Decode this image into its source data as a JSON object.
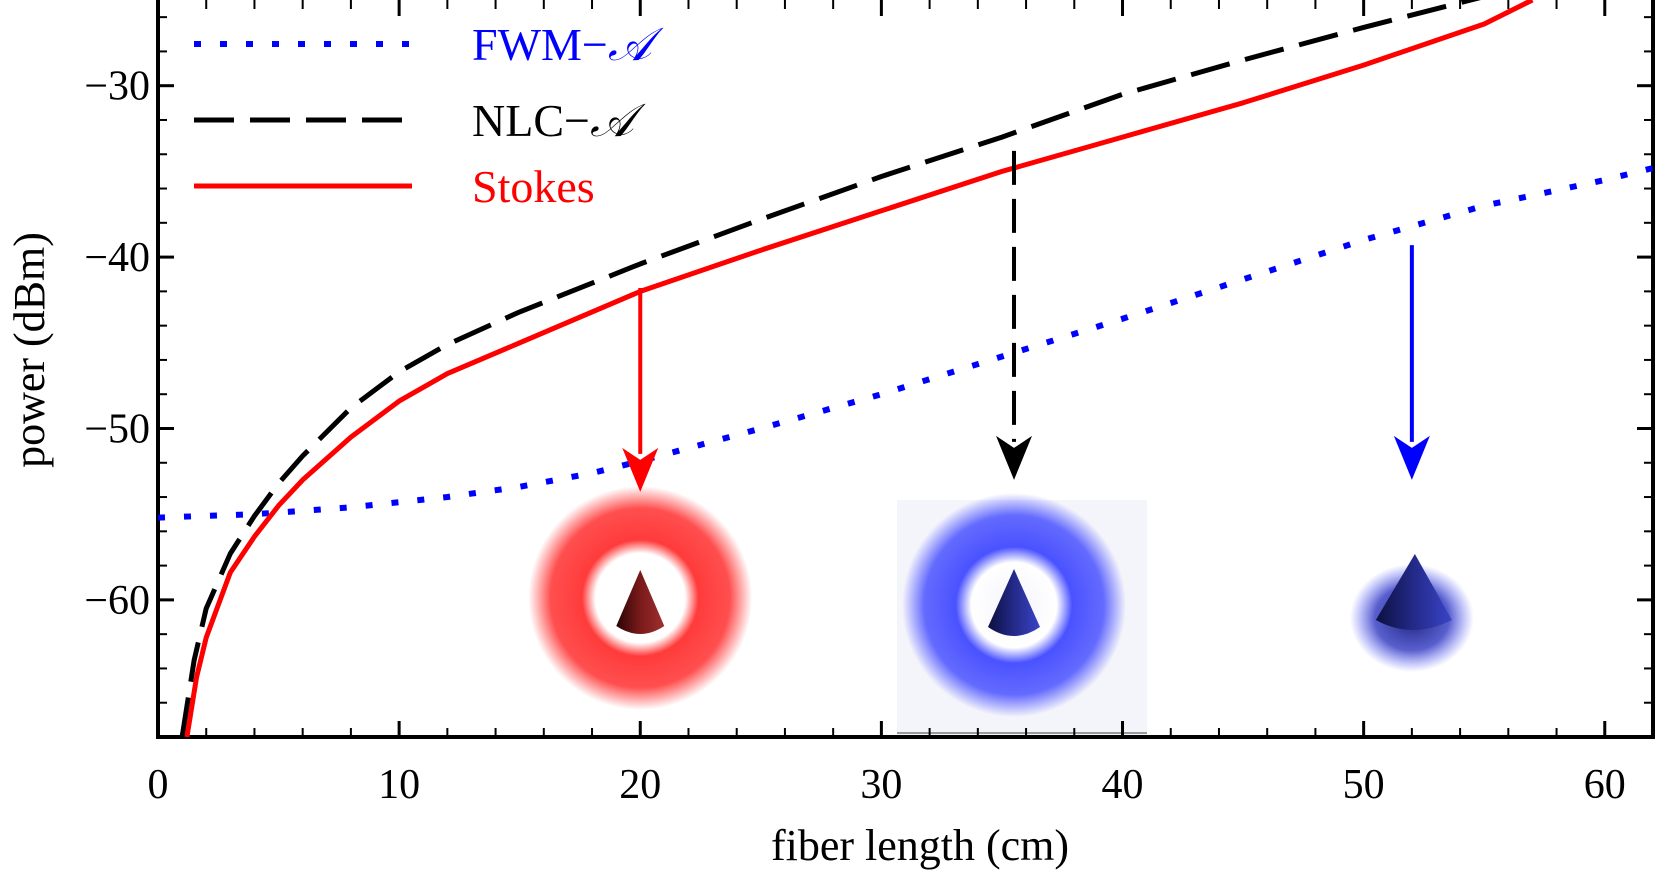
{
  "chart_data": {
    "type": "line",
    "xlabel": "fiber length (cm)",
    "ylabel": "power (dBm)",
    "xlim": [
      0,
      62
    ],
    "ylim": [
      -68,
      -25
    ],
    "xticks": [
      0,
      10,
      20,
      30,
      40,
      50,
      60
    ],
    "xtick_labels": [
      "0",
      "10",
      "20",
      "30",
      "40",
      "50",
      "60"
    ],
    "yticks": [
      -60,
      -50,
      -40,
      -30
    ],
    "ytick_labels": [
      "−60",
      "−50",
      "−40",
      "−30"
    ],
    "legend_position": "top-left",
    "series": [
      {
        "name": "FWM−",
        "name_suffix": "𝒜",
        "color": "#0000ff",
        "style": "dotted",
        "x": [
          0,
          2,
          4,
          6,
          8,
          10,
          12,
          15,
          18,
          20,
          25,
          30,
          35,
          40,
          45,
          50,
          55,
          60,
          62
        ],
        "y": [
          -55.2,
          -55.1,
          -55.0,
          -54.8,
          -54.6,
          -54.3,
          -54.0,
          -53.4,
          -52.6,
          -51.9,
          -50.0,
          -48.0,
          -45.8,
          -43.6,
          -41.3,
          -39.0,
          -37.0,
          -35.5,
          -34.8
        ]
      },
      {
        "name": "NLC−",
        "name_suffix": "𝒜",
        "color": "#000000",
        "style": "dashed",
        "x": [
          1,
          1.5,
          2,
          3,
          4,
          5,
          6,
          8,
          10,
          12,
          15,
          20,
          25,
          30,
          35,
          40,
          45,
          50,
          55
        ],
        "y": [
          -68.0,
          -63.5,
          -60.5,
          -57.3,
          -55.1,
          -53.2,
          -51.6,
          -48.8,
          -46.7,
          -45.1,
          -43.2,
          -40.4,
          -37.8,
          -35.3,
          -33.0,
          -30.5,
          -28.5,
          -26.6,
          -24.8
        ]
      },
      {
        "name": "Stokes",
        "name_suffix": "",
        "color": "#ff0000",
        "style": "solid",
        "x": [
          1.2,
          1.6,
          2,
          3,
          4,
          5,
          6,
          8,
          10,
          12,
          15,
          20,
          25,
          30,
          35,
          40,
          45,
          50,
          55,
          57
        ],
        "y": [
          -68.0,
          -64.5,
          -62.2,
          -58.4,
          -56.3,
          -54.5,
          -53.0,
          -50.5,
          -48.4,
          -46.8,
          -45.0,
          -42.0,
          -39.6,
          -37.3,
          -35.0,
          -33.0,
          -31.0,
          -28.8,
          -26.4,
          -25.0
        ]
      }
    ],
    "annotations": [
      {
        "type": "arrow",
        "x": 20,
        "y_start": -41.8,
        "y_end": -53.7,
        "color": "#ff0000",
        "style": "solid",
        "beam_color": "#ff3b3b",
        "core_color": "#5a0f0f"
      },
      {
        "type": "arrow",
        "x": 35.5,
        "y_start": -33.8,
        "y_end": -53.0,
        "color": "#000000",
        "style": "dashed",
        "beam_color": "#4a52ff",
        "core_color": "#141a55"
      },
      {
        "type": "arrow",
        "x": 52,
        "y_start": -39.3,
        "y_end": -53.0,
        "color": "#0000ff",
        "style": "solid",
        "beam_color": "#3b45e0",
        "core_color": "#141a55"
      }
    ]
  }
}
